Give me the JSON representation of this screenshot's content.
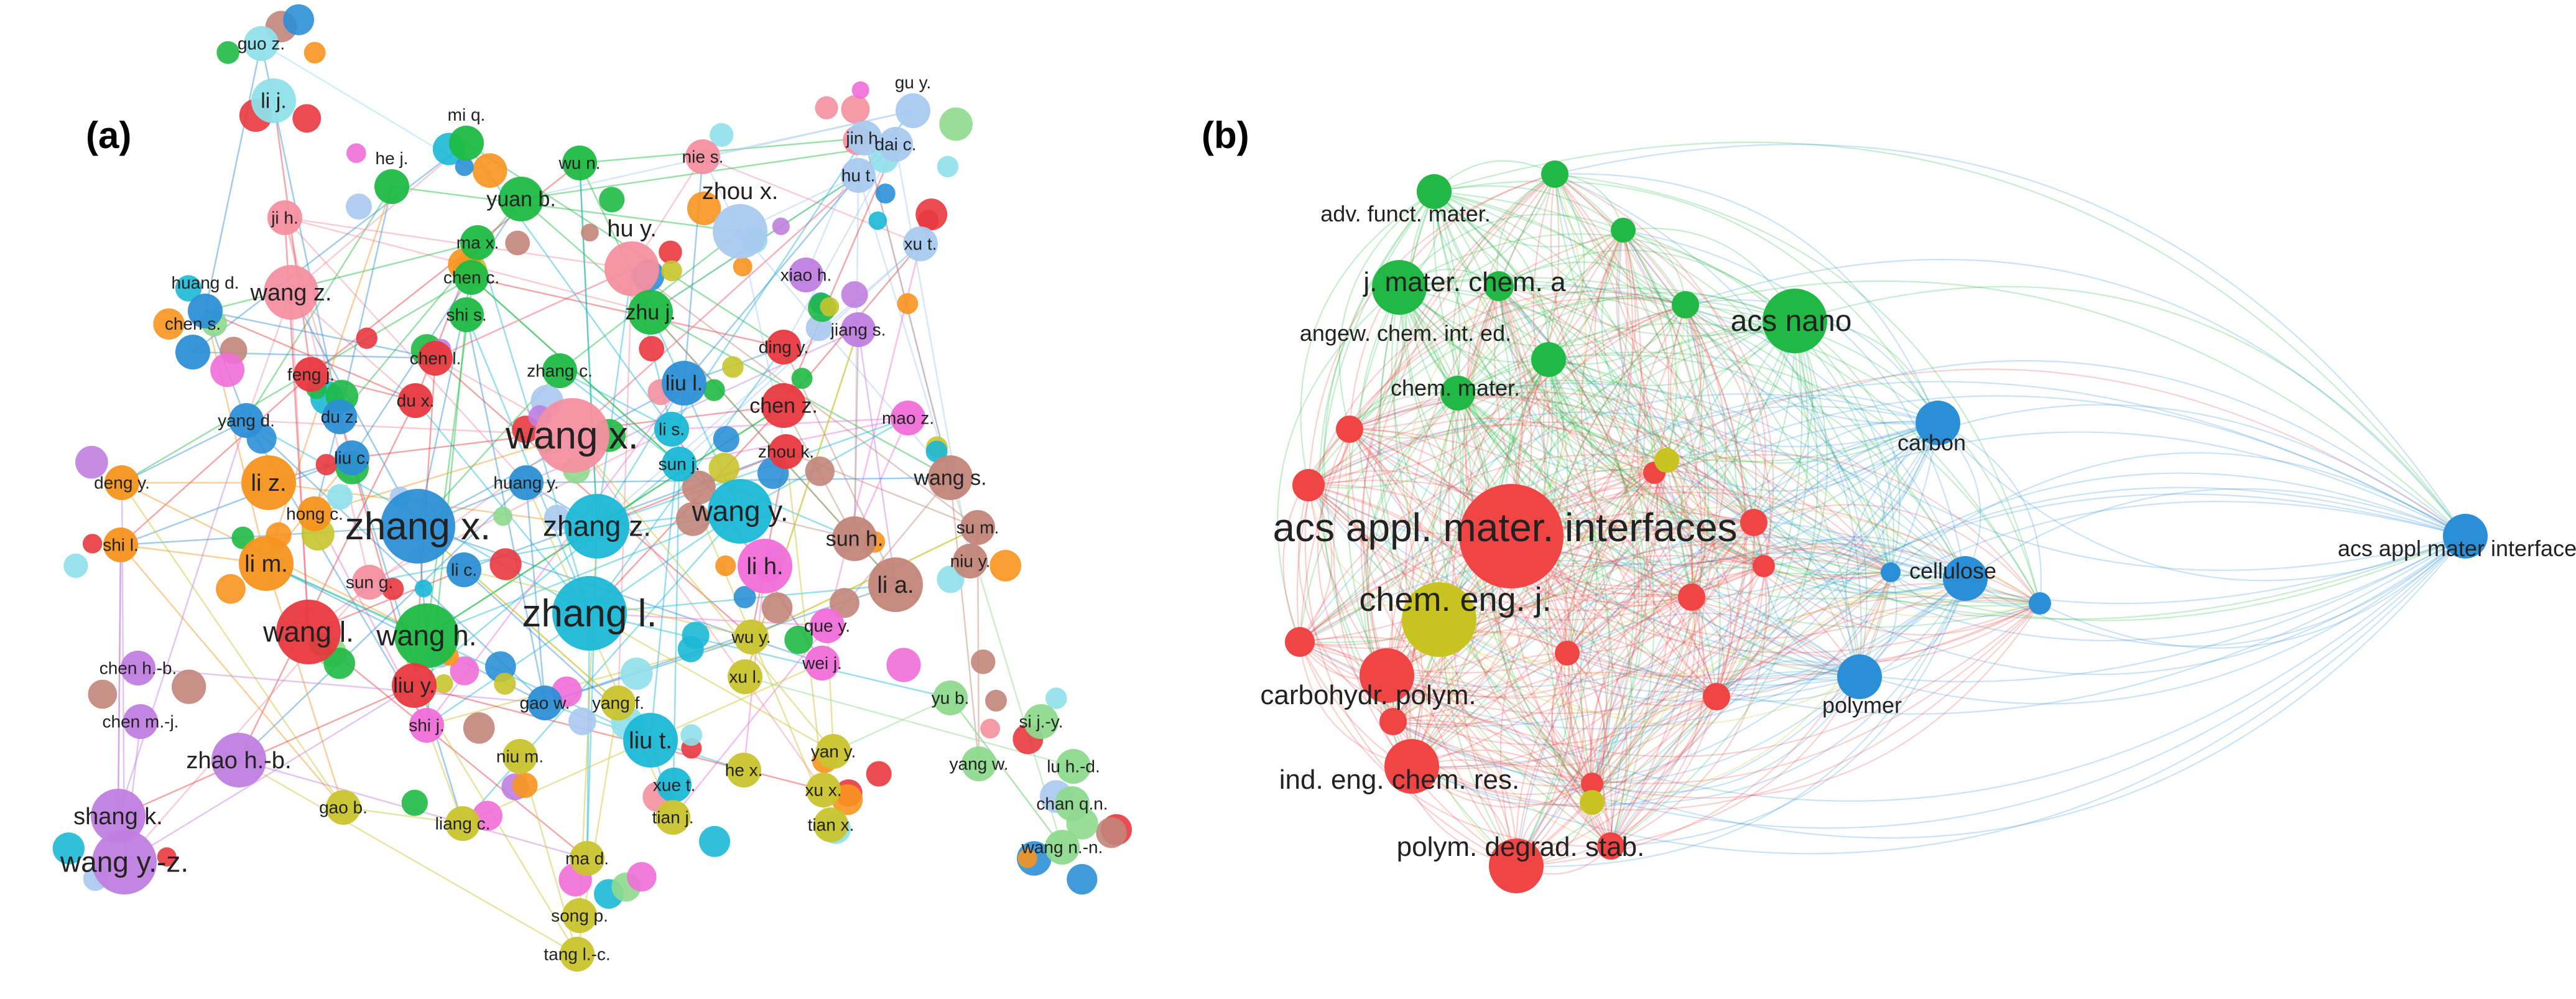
{
  "panels": [
    {
      "id": "a",
      "tag": "(a)",
      "clusters": {
        "red": "#e8393f",
        "green": "#1fba45",
        "blue": "#2c8fd6",
        "orange": "#f7941e",
        "cyan": "#1bb8d6",
        "purple": "#c07ee0",
        "yellow": "#c9c42e",
        "pink": "#f48fa0",
        "lightblue": "#a8c9ef",
        "lightgreen": "#8ed98d",
        "brown": "#c2857a",
        "magenta": "#f06ed8",
        "aqua": "#8fe0ea"
      },
      "nodes": [
        {
          "id": "guo_z",
          "label": "guo z.",
          "cluster": "aqua",
          "size": 2
        },
        {
          "id": "li_j",
          "label": "li j.",
          "cluster": "aqua",
          "size": 3
        },
        {
          "id": "mi_q",
          "label": "mi q.",
          "cluster": "green",
          "size": 2
        },
        {
          "id": "wu_n",
          "label": "wu n.",
          "cluster": "green",
          "size": 2
        },
        {
          "id": "nie_s",
          "label": "nie s.",
          "cluster": "pink",
          "size": 2
        },
        {
          "id": "gu_y",
          "label": "gu y.",
          "cluster": "lightblue",
          "size": 2
        },
        {
          "id": "jin_h",
          "label": "jin h.",
          "cluster": "lightblue",
          "size": 2
        },
        {
          "id": "dai_c",
          "label": "dai c.",
          "cluster": "lightblue",
          "size": 2
        },
        {
          "id": "hu_t",
          "label": "hu t.",
          "cluster": "lightblue",
          "size": 2
        },
        {
          "id": "he_j",
          "label": "he j.",
          "cluster": "green",
          "size": 2
        },
        {
          "id": "yuan_b",
          "label": "yuan b.",
          "cluster": "green",
          "size": 3
        },
        {
          "id": "ji_h",
          "label": "ji h.",
          "cluster": "pink",
          "size": 2
        },
        {
          "id": "ma_x",
          "label": "ma x.",
          "cluster": "green",
          "size": 2
        },
        {
          "id": "zhou_x",
          "label": "zhou x.",
          "cluster": "lightblue",
          "size": 4
        },
        {
          "id": "xu_t",
          "label": "xu t.",
          "cluster": "lightblue",
          "size": 2
        },
        {
          "id": "chen_c",
          "label": "chen c.",
          "cluster": "green",
          "size": 2
        },
        {
          "id": "hu_y",
          "label": "hu y.",
          "cluster": "pink",
          "size": 4
        },
        {
          "id": "xiao_h",
          "label": "xiao h.",
          "cluster": "purple",
          "size": 2
        },
        {
          "id": "wang_z",
          "label": "wang z.",
          "cluster": "pink",
          "size": 4
        },
        {
          "id": "shi_s",
          "label": "shi s.",
          "cluster": "green",
          "size": 2
        },
        {
          "id": "huang_d",
          "label": "huang d.",
          "cluster": "blue",
          "size": 2
        },
        {
          "id": "zhu_j",
          "label": "zhu j.",
          "cluster": "green",
          "size": 3
        },
        {
          "id": "jiang_s",
          "label": "jiang s.",
          "cluster": "purple",
          "size": 2
        },
        {
          "id": "chen_s",
          "label": "chen s.",
          "cluster": "blue",
          "size": 2
        },
        {
          "id": "chen_l",
          "label": "chen l.",
          "cluster": "red",
          "size": 2
        },
        {
          "id": "ding_y",
          "label": "ding y.",
          "cluster": "red",
          "size": 2
        },
        {
          "id": "feng_j",
          "label": "feng j.",
          "cluster": "red",
          "size": 2
        },
        {
          "id": "zhang_c",
          "label": "zhang c.",
          "cluster": "green",
          "size": 2
        },
        {
          "id": "liu_l",
          "label": "liu l.",
          "cluster": "blue",
          "size": 3
        },
        {
          "id": "du_x",
          "label": "du x.",
          "cluster": "red",
          "size": 2
        },
        {
          "id": "chen_z",
          "label": "chen z.",
          "cluster": "red",
          "size": 3
        },
        {
          "id": "du_z",
          "label": "du z.",
          "cluster": "blue",
          "size": 2
        },
        {
          "id": "yang_d",
          "label": "yang d.",
          "cluster": "blue",
          "size": 2
        },
        {
          "id": "wang_x",
          "label": "wang x.",
          "cluster": "pink",
          "size": 6
        },
        {
          "id": "li_s",
          "label": "li s.",
          "cluster": "cyan",
          "size": 2
        },
        {
          "id": "mao_z",
          "label": "mao z.",
          "cluster": "magenta",
          "size": 2
        },
        {
          "id": "liu_c",
          "label": "liu c.",
          "cluster": "blue",
          "size": 2
        },
        {
          "id": "zhou_k",
          "label": "zhou k.",
          "cluster": "red",
          "size": 2
        },
        {
          "id": "li_z",
          "label": "li z.",
          "cluster": "orange",
          "size": 4
        },
        {
          "id": "sun_j",
          "label": "sun j.",
          "cluster": "cyan",
          "size": 2
        },
        {
          "id": "wang_s",
          "label": "wang s.",
          "cluster": "brown",
          "size": 3
        },
        {
          "id": "deng_y",
          "label": "deng y.",
          "cluster": "orange",
          "size": 2
        },
        {
          "id": "huang_y",
          "label": "huang y.",
          "cluster": "blue",
          "size": 2
        },
        {
          "id": "hong_c",
          "label": "hong c.",
          "cluster": "orange",
          "size": 2
        },
        {
          "id": "zhang_x",
          "label": "zhang x.",
          "cluster": "blue",
          "size": 6
        },
        {
          "id": "zhang_z",
          "label": "zhang z.",
          "cluster": "cyan",
          "size": 5
        },
        {
          "id": "wang_y",
          "label": "wang y.",
          "cluster": "cyan",
          "size": 5
        },
        {
          "id": "su_m",
          "label": "su m.",
          "cluster": "brown",
          "size": 2
        },
        {
          "id": "shi_l",
          "label": "shi l.",
          "cluster": "orange",
          "size": 2
        },
        {
          "id": "sun_h",
          "label": "sun h.",
          "cluster": "brown",
          "size": 3
        },
        {
          "id": "niu_y",
          "label": "niu y.",
          "cluster": "brown",
          "size": 2
        },
        {
          "id": "li_m",
          "label": "li m.",
          "cluster": "orange",
          "size": 4
        },
        {
          "id": "li_h",
          "label": "li h.",
          "cluster": "magenta",
          "size": 4
        },
        {
          "id": "li_a",
          "label": "li a.",
          "cluster": "brown",
          "size": 4
        },
        {
          "id": "sun_g",
          "label": "sun g.",
          "cluster": "pink",
          "size": 2
        },
        {
          "id": "li_c",
          "label": "li c.",
          "cluster": "blue",
          "size": 2
        },
        {
          "id": "zhang_l",
          "label": "zhang l.",
          "cluster": "cyan",
          "size": 6
        },
        {
          "id": "que_y",
          "label": "que y.",
          "cluster": "magenta",
          "size": 2
        },
        {
          "id": "wang_l",
          "label": "wang l.",
          "cluster": "red",
          "size": 5
        },
        {
          "id": "wang_h",
          "label": "wang h.",
          "cluster": "green",
          "size": 5
        },
        {
          "id": "wu_y",
          "label": "wu y.",
          "cluster": "yellow",
          "size": 2
        },
        {
          "id": "wei_j",
          "label": "wei j.",
          "cluster": "magenta",
          "size": 2
        },
        {
          "id": "chen_hb",
          "label": "chen h.-b.",
          "cluster": "purple",
          "size": 2
        },
        {
          "id": "liu_y",
          "label": "liu y.",
          "cluster": "red",
          "size": 3
        },
        {
          "id": "xu_l",
          "label": "xu l.",
          "cluster": "yellow",
          "size": 2
        },
        {
          "id": "yu_b",
          "label": "yu b.",
          "cluster": "lightgreen",
          "size": 2
        },
        {
          "id": "chen_mj",
          "label": "chen m.-j.",
          "cluster": "purple",
          "size": 2
        },
        {
          "id": "shi_j",
          "label": "shi j.",
          "cluster": "magenta",
          "size": 2
        },
        {
          "id": "gao_w",
          "label": "gao w.",
          "cluster": "blue",
          "size": 2
        },
        {
          "id": "yang_f",
          "label": "yang f.",
          "cluster": "yellow",
          "size": 2
        },
        {
          "id": "si_jy",
          "label": "si j.-y.",
          "cluster": "lightgreen",
          "size": 2
        },
        {
          "id": "zhao_hb",
          "label": "zhao h.-b.",
          "cluster": "purple",
          "size": 4
        },
        {
          "id": "niu_m",
          "label": "niu m.",
          "cluster": "yellow",
          "size": 2
        },
        {
          "id": "liu_t",
          "label": "liu t.",
          "cluster": "cyan",
          "size": 4
        },
        {
          "id": "yan_y",
          "label": "yan y.",
          "cluster": "yellow",
          "size": 2
        },
        {
          "id": "yang_w",
          "label": "yang w.",
          "cluster": "lightgreen",
          "size": 2
        },
        {
          "id": "lu_hd",
          "label": "lu h.-d.",
          "cluster": "lightgreen",
          "size": 2
        },
        {
          "id": "he_x",
          "label": "he x.",
          "cluster": "yellow",
          "size": 2
        },
        {
          "id": "shang_k",
          "label": "shang k.",
          "cluster": "purple",
          "size": 4
        },
        {
          "id": "xue_t",
          "label": "xue t.",
          "cluster": "cyan",
          "size": 2
        },
        {
          "id": "xu_x",
          "label": "xu x.",
          "cluster": "yellow",
          "size": 2
        },
        {
          "id": "gao_b",
          "label": "gao b.",
          "cluster": "yellow",
          "size": 2
        },
        {
          "id": "liang_c",
          "label": "liang c.",
          "cluster": "yellow",
          "size": 2
        },
        {
          "id": "tian_j",
          "label": "tian j.",
          "cluster": "yellow",
          "size": 2
        },
        {
          "id": "tian_x",
          "label": "tian x.",
          "cluster": "yellow",
          "size": 2
        },
        {
          "id": "chan_qn",
          "label": "chan q.n.",
          "cluster": "lightgreen",
          "size": 2
        },
        {
          "id": "wang_yz",
          "label": "wang y.-z.",
          "cluster": "purple",
          "size": 5
        },
        {
          "id": "ma_d",
          "label": "ma d.",
          "cluster": "yellow",
          "size": 2
        },
        {
          "id": "wang_nn",
          "label": "wang n.-n.",
          "cluster": "lightgreen",
          "size": 2
        },
        {
          "id": "song_p",
          "label": "song p.",
          "cluster": "yellow",
          "size": 2
        },
        {
          "id": "tang_lc",
          "label": "tang l.-c.",
          "cluster": "yellow",
          "size": 2
        }
      ]
    },
    {
      "id": "b",
      "tag": "(b)",
      "clusters": {
        "red": "#f04545",
        "green": "#21b845",
        "blue": "#2b8fd8",
        "yellow": "#c7c422"
      },
      "nodes": [
        {
          "id": "adv_funct",
          "label": "adv. funct. mater.",
          "cluster": "green",
          "size": 2
        },
        {
          "id": "jmca",
          "label": "j. mater. chem. a",
          "cluster": "green",
          "size": 4
        },
        {
          "id": "acs_nano",
          "label": "acs nano",
          "cluster": "green",
          "size": 5
        },
        {
          "id": "angew",
          "label": "angew. chem. int. ed.",
          "cluster": "green",
          "size": 2
        },
        {
          "id": "chem_mater",
          "label": "chem. mater.",
          "cluster": "green",
          "size": 2
        },
        {
          "id": "carbon",
          "label": "carbon",
          "cluster": "blue",
          "size": 3
        },
        {
          "id": "acs_ami",
          "label": "acs appl. mater. interfaces",
          "cluster": "red",
          "size": 9
        },
        {
          "id": "acs_ami2",
          "label": "acs appl mater interfaces",
          "cluster": "blue",
          "size": 3
        },
        {
          "id": "cellulose",
          "label": "cellulose",
          "cluster": "blue",
          "size": 3
        },
        {
          "id": "chem_eng_j",
          "label": "chem. eng. j.",
          "cluster": "yellow",
          "size": 6
        },
        {
          "id": "carbohydr",
          "label": "carbohydr. polym.",
          "cluster": "red",
          "size": 4
        },
        {
          "id": "polymer",
          "label": "polymer",
          "cluster": "blue",
          "size": 3
        },
        {
          "id": "ind_eng",
          "label": "ind. eng. chem. res.",
          "cluster": "red",
          "size": 4
        },
        {
          "id": "polym_degrad",
          "label": "polym. degrad. stab.",
          "cluster": "red",
          "size": 4
        }
      ]
    }
  ]
}
